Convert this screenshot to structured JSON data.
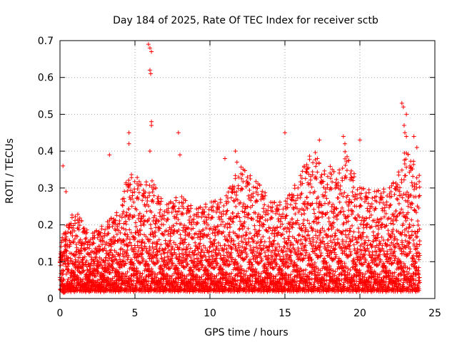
{
  "chart_data": {
    "type": "scatter",
    "title": "Day 184 of 2025, Rate Of TEC Index for receiver sctb",
    "xlabel": "GPS time / hours",
    "ylabel": "ROTI / TECUs",
    "xlim": [
      0,
      25
    ],
    "ylim": [
      0,
      0.7
    ],
    "xticks": [
      0,
      5,
      10,
      15,
      20,
      25
    ],
    "yticks": [
      0,
      0.1,
      0.2,
      0.3,
      0.4,
      0.5,
      0.6,
      0.7
    ],
    "xtick_labels": [
      "0",
      "5",
      "10",
      "15",
      "20",
      "25"
    ],
    "ytick_labels": [
      "0",
      "0.1",
      "0.2",
      "0.3",
      "0.4",
      "0.5",
      "0.6",
      "0.7"
    ],
    "grid": true,
    "marker": "+",
    "color": "#ff0000",
    "envelope": {
      "description": "upper envelope of dense ROTI scatter, hours vs TECUs",
      "x": [
        0,
        1,
        2,
        3,
        4,
        4.5,
        5,
        5.5,
        6,
        6.5,
        7,
        8,
        9,
        10,
        11,
        12,
        13,
        13.5,
        14,
        15,
        16,
        16.5,
        17,
        17.5,
        18,
        18.5,
        19,
        20,
        21,
        22,
        22.5,
        23,
        23.5,
        24
      ],
      "y": [
        0.16,
        0.24,
        0.17,
        0.2,
        0.24,
        0.33,
        0.34,
        0.3,
        0.33,
        0.29,
        0.25,
        0.28,
        0.24,
        0.26,
        0.27,
        0.36,
        0.32,
        0.3,
        0.26,
        0.26,
        0.33,
        0.38,
        0.4,
        0.34,
        0.36,
        0.33,
        0.4,
        0.3,
        0.29,
        0.3,
        0.33,
        0.4,
        0.38,
        0.33
      ]
    },
    "baseline": {
      "description": "lower edge of dense scatter band (TECUs)",
      "y": 0.02
    },
    "outliers": [
      {
        "x": 0.2,
        "y": 0.36
      },
      {
        "x": 0.4,
        "y": 0.29
      },
      {
        "x": 3.3,
        "y": 0.39
      },
      {
        "x": 4.6,
        "y": 0.45
      },
      {
        "x": 4.6,
        "y": 0.42
      },
      {
        "x": 5.9,
        "y": 0.69
      },
      {
        "x": 6.0,
        "y": 0.68
      },
      {
        "x": 6.1,
        "y": 0.67
      },
      {
        "x": 6.0,
        "y": 0.62
      },
      {
        "x": 6.05,
        "y": 0.61
      },
      {
        "x": 6.1,
        "y": 0.48
      },
      {
        "x": 6.1,
        "y": 0.47
      },
      {
        "x": 6.0,
        "y": 0.4
      },
      {
        "x": 7.9,
        "y": 0.45
      },
      {
        "x": 8.0,
        "y": 0.39
      },
      {
        "x": 11.0,
        "y": 0.38
      },
      {
        "x": 11.7,
        "y": 0.4
      },
      {
        "x": 11.8,
        "y": 0.37
      },
      {
        "x": 15.0,
        "y": 0.45
      },
      {
        "x": 17.3,
        "y": 0.43
      },
      {
        "x": 18.9,
        "y": 0.44
      },
      {
        "x": 19.0,
        "y": 0.42
      },
      {
        "x": 20.0,
        "y": 0.43
      },
      {
        "x": 22.8,
        "y": 0.53
      },
      {
        "x": 22.9,
        "y": 0.52
      },
      {
        "x": 23.1,
        "y": 0.5
      },
      {
        "x": 22.95,
        "y": 0.47
      },
      {
        "x": 23.0,
        "y": 0.45
      },
      {
        "x": 23.1,
        "y": 0.44
      },
      {
        "x": 23.6,
        "y": 0.44
      },
      {
        "x": 23.8,
        "y": 0.41
      }
    ]
  }
}
